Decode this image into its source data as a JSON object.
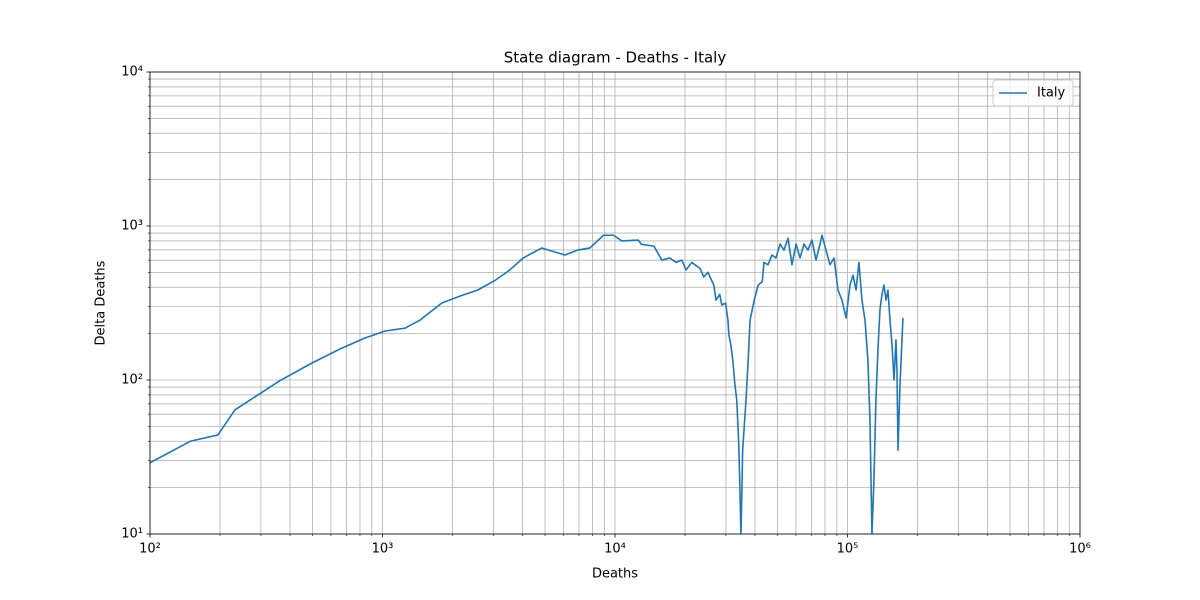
{
  "chart_data": {
    "type": "line",
    "title": "State diagram - Deaths - Italy",
    "xlabel": "Deaths",
    "ylabel": "Delta Deaths",
    "xscale": "log",
    "yscale": "log",
    "xlim": [
      100,
      1000000
    ],
    "ylim": [
      10,
      10000
    ],
    "xticks": [
      {
        "value": 100,
        "label": "10²"
      },
      {
        "value": 1000,
        "label": "10³"
      },
      {
        "value": 10000,
        "label": "10⁴"
      },
      {
        "value": 100000,
        "label": "10⁵"
      },
      {
        "value": 1000000,
        "label": "10⁶"
      }
    ],
    "yticks": [
      {
        "value": 10,
        "label": "10¹"
      },
      {
        "value": 100,
        "label": "10²"
      },
      {
        "value": 1000,
        "label": "10³"
      },
      {
        "value": 10000,
        "label": "10⁴"
      }
    ],
    "grid": "both",
    "legend": "upper right",
    "x": [
      100,
      149,
      196,
      232,
      362,
      488,
      656,
      838,
      1026,
      1250,
      1450,
      1800,
      2160,
      2570,
      3060,
      3480,
      4030,
      4840,
      6090,
      6920,
      7800,
      8930,
      9860,
      10700,
      12600,
      13000,
      14700,
      15900,
      17200,
      18300,
      19400,
      20200,
      21400,
      23200,
      24100,
      25100,
      26600,
      27200,
      28200,
      28800,
      29900,
      30600,
      30900,
      31500,
      32100,
      32800,
      33400,
      33700,
      34000,
      34400,
      34800,
      35100,
      35400,
      36600,
      37400,
      38100,
      39700,
      41300,
      43000,
      43700,
      45500,
      47300,
      49200,
      51300,
      53300,
      55500,
      57700,
      60100,
      62500,
      65000,
      67600,
      70300,
      73200,
      76200,
      77700,
      80800,
      84100,
      87500,
      91000,
      94700,
      98600,
      102500,
      105600,
      108800,
      112000,
      115400,
      118900,
      122400,
      124900,
      127400,
      129900,
      132500,
      135200,
      137900,
      140700,
      143500,
      146400,
      149300,
      152300,
      155400,
      158500,
      161600,
      163200,
      164900,
      168200,
      173200
    ],
    "series": [
      {
        "name": "Italy",
        "color": "#1f77b4",
        "values": [
          29,
          40,
          44,
          64,
          99,
          127,
          159,
          187,
          208,
          217,
          245,
          316,
          351,
          384,
          445,
          510,
          620,
          720,
          648,
          698,
          720,
          871,
          871,
          800,
          810,
          760,
          740,
          601,
          620,
          580,
          600,
          518,
          580,
          530,
          467,
          500,
          414,
          330,
          360,
          307,
          316,
          245,
          196,
          169,
          135,
          93,
          74,
          55,
          41,
          22,
          10,
          17,
          35,
          74,
          135,
          245,
          330,
          414,
          435,
          580,
          560,
          648,
          620,
          764,
          698,
          832,
          560,
          764,
          620,
          764,
          698,
          810,
          601,
          764,
          871,
          698,
          560,
          620,
          384,
          330,
          253,
          414,
          480,
          384,
          580,
          330,
          245,
          135,
          55,
          10,
          22,
          74,
          157,
          285,
          360,
          414,
          330,
          384,
          245,
          169,
          100,
          182,
          116,
          35,
          93,
          253
        ]
      }
    ]
  }
}
